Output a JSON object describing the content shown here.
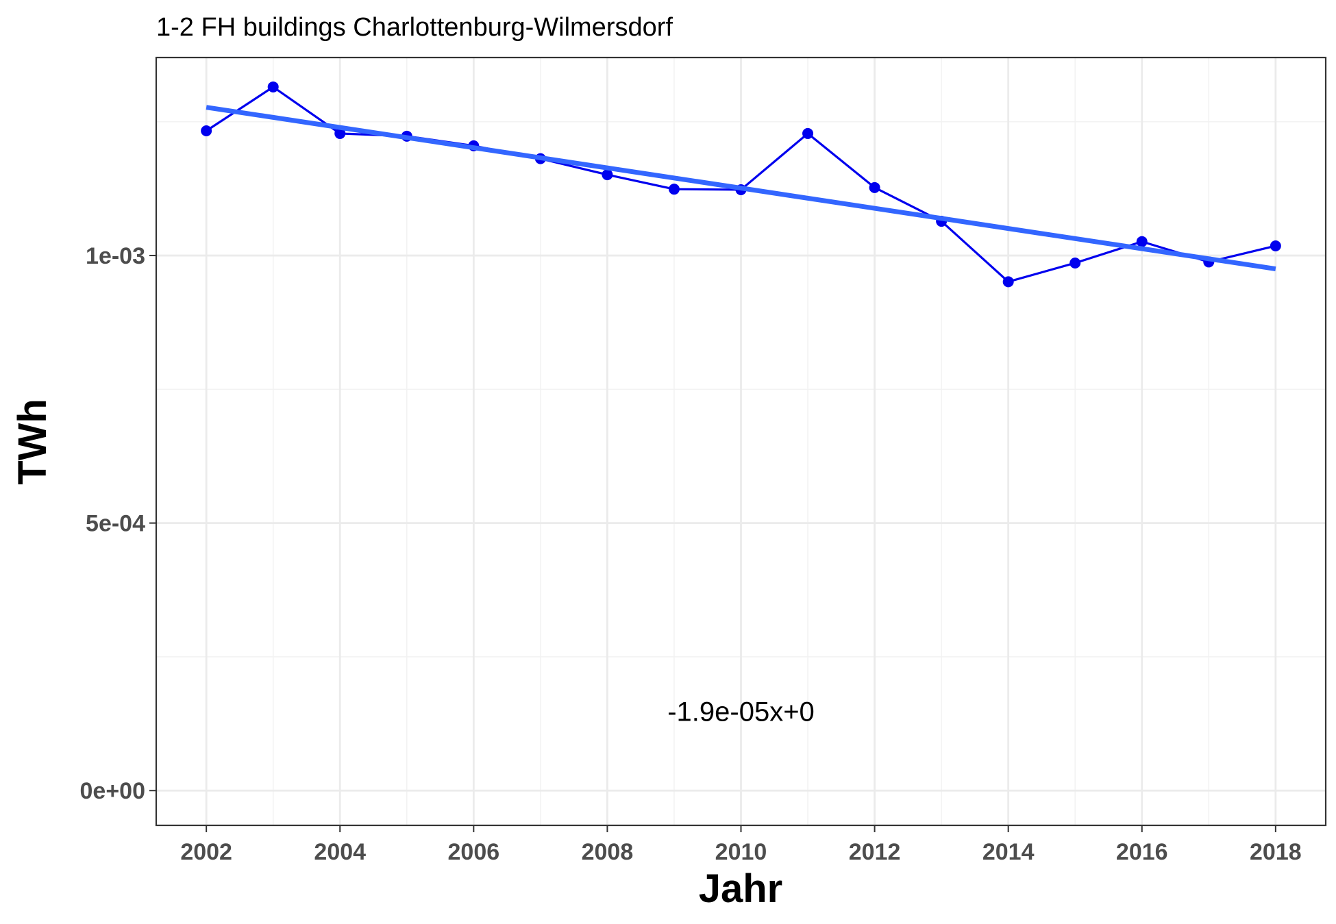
{
  "chart_data": {
    "type": "line",
    "title": "1-2 FH buildings Charlottenburg-Wilmersdorf",
    "xlabel": "Jahr",
    "ylabel": "TWh",
    "xlim": [
      2001.25,
      2018.75
    ],
    "ylim": [
      -6.5e-05,
      0.00137
    ],
    "x_ticks": [
      2002,
      2004,
      2006,
      2008,
      2010,
      2012,
      2014,
      2016,
      2018
    ],
    "x_tick_labels": [
      "2002",
      "2004",
      "2006",
      "2008",
      "2010",
      "2012",
      "2014",
      "2016",
      "2018"
    ],
    "y_ticks": [
      0,
      0.0005,
      0.001
    ],
    "y_tick_labels": [
      "0e+00",
      "5e-04",
      "1e-03"
    ],
    "grid": true,
    "series": [
      {
        "color": "#0000ee",
        "x": [
          2002,
          2003,
          2004,
          2005,
          2006,
          2007,
          2008,
          2009,
          2010,
          2011,
          2012,
          2013,
          2014,
          2015,
          2016,
          2017,
          2018
        ],
        "y": [
          0.001233,
          0.001315,
          0.001228,
          0.001223,
          0.001205,
          0.001181,
          0.001151,
          0.001124,
          0.001123,
          0.001228,
          0.001127,
          0.001064,
          0.000951,
          0.000986,
          0.001026,
          0.000988,
          0.001018
        ]
      }
    ],
    "trend_line": {
      "color": "#3366ff",
      "x": [
        2002,
        2018
      ],
      "y": [
        0.001277,
        0.000975
      ]
    },
    "annotation": {
      "text": "-1.9e-05x+0",
      "x": 2010,
      "y": 0.000148
    }
  }
}
